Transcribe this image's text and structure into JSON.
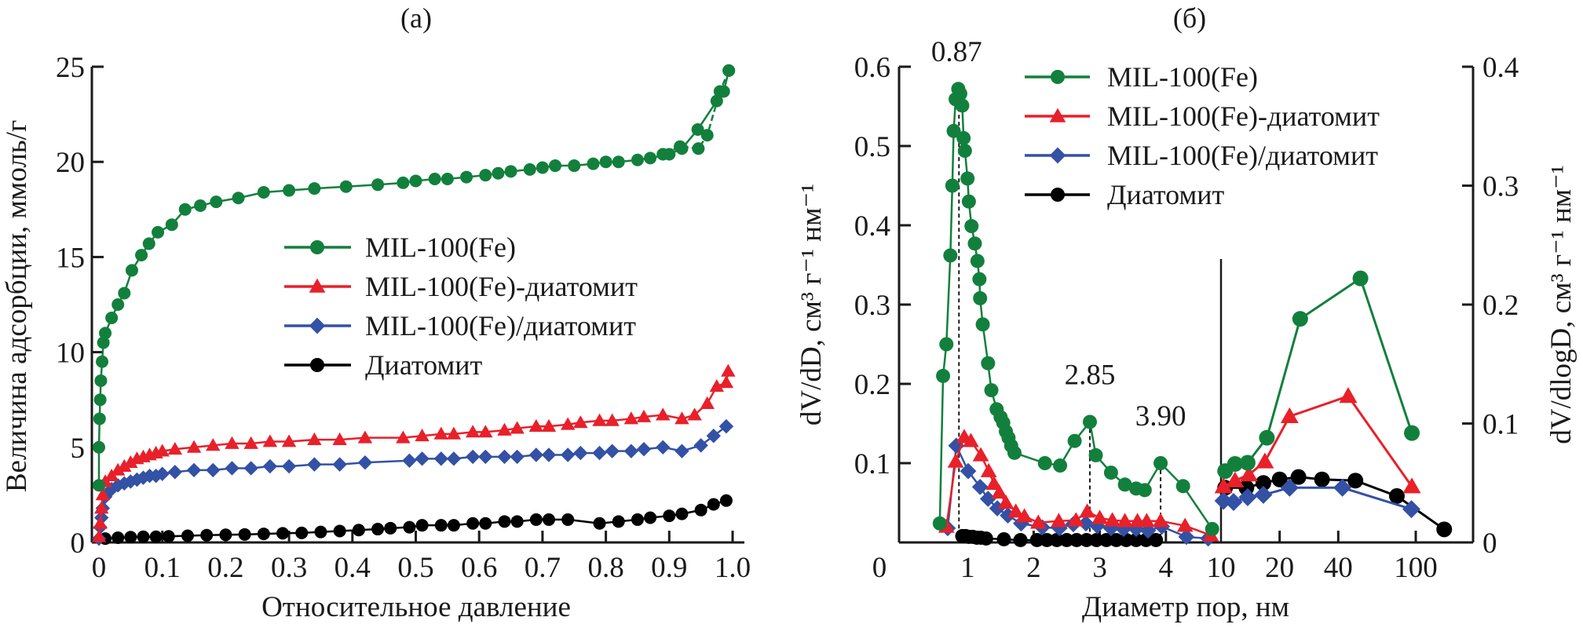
{
  "colors": {
    "green": "#12803c",
    "red": "#e8202a",
    "blue": "#3351a5",
    "black": "#000000"
  },
  "chart_data": [
    {
      "id": "a",
      "type": "line",
      "title": "(a)",
      "xlabel": "Относительное давление",
      "ylabel": "Величина адсорбции, ммоль/г",
      "xlim": [
        0,
        1.0
      ],
      "ylim": [
        0,
        25
      ],
      "xticks": [
        0,
        0.1,
        0.2,
        0.3,
        0.4,
        0.5,
        0.6,
        0.7,
        0.8,
        0.9,
        1.0
      ],
      "xtick_labels": [
        "0",
        "0.1",
        "0.2",
        "0.3",
        "0.4",
        "0.5",
        "0.6",
        "0.7",
        "0.8",
        "0.9",
        "1.0"
      ],
      "yticks": [
        0,
        5,
        10,
        15,
        20,
        25
      ],
      "ytick_labels": [
        "0",
        "5",
        "10",
        "15",
        "20",
        "25"
      ],
      "grid": false,
      "legend_position": "center-right",
      "series": [
        {
          "name": "MIL-100(Fe)",
          "color_key": "green",
          "marker": "circle",
          "x": [
            0.0,
            0.0,
            0.001,
            0.002,
            0.003,
            0.005,
            0.007,
            0.01,
            0.02,
            0.03,
            0.04,
            0.052,
            0.067,
            0.079,
            0.093,
            0.115,
            0.136,
            0.16,
            0.185,
            0.22,
            0.26,
            0.3,
            0.34,
            0.39,
            0.44,
            0.48,
            0.5,
            0.53,
            0.55,
            0.58,
            0.61,
            0.63,
            0.65,
            0.68,
            0.7,
            0.72,
            0.75,
            0.78,
            0.8,
            0.82,
            0.85,
            0.87,
            0.9,
            0.92,
            0.945,
            0.975,
            0.986,
            0.994
          ],
          "y": [
            3.0,
            5.0,
            6.5,
            7.5,
            8.5,
            9.5,
            10.5,
            11.0,
            11.8,
            12.5,
            13.1,
            14.3,
            15.1,
            15.7,
            16.3,
            16.7,
            17.5,
            17.7,
            17.9,
            18.1,
            18.4,
            18.5,
            18.6,
            18.7,
            18.8,
            18.9,
            19.0,
            19.1,
            19.1,
            19.2,
            19.3,
            19.4,
            19.5,
            19.6,
            19.7,
            19.8,
            19.8,
            19.9,
            20.0,
            20.0,
            20.1,
            20.2,
            20.4,
            20.7,
            21.7,
            23.2,
            23.7,
            24.8
          ],
          "desorption_x": [
            0.994,
            0.98,
            0.96,
            0.946,
            0.917,
            0.89
          ],
          "desorption_y": [
            24.8,
            23.7,
            21.4,
            20.7,
            20.8,
            20.4
          ]
        },
        {
          "name": "MIL-100(Fe)-диатомит",
          "color_key": "red",
          "marker": "triangle",
          "x": [
            0.0,
            0.002,
            0.004,
            0.006,
            0.01,
            0.02,
            0.03,
            0.04,
            0.05,
            0.06,
            0.07,
            0.08,
            0.09,
            0.1,
            0.12,
            0.15,
            0.18,
            0.21,
            0.24,
            0.27,
            0.3,
            0.34,
            0.38,
            0.42,
            0.48,
            0.51,
            0.54,
            0.56,
            0.59,
            0.61,
            0.64,
            0.66,
            0.69,
            0.71,
            0.74,
            0.76,
            0.79,
            0.81,
            0.84,
            0.86,
            0.89,
            0.92,
            0.94,
            0.96,
            0.975,
            0.99,
            0.993
          ],
          "y": [
            0.3,
            1.0,
            1.8,
            2.5,
            3.2,
            3.5,
            3.8,
            4.0,
            4.2,
            4.4,
            4.5,
            4.6,
            4.7,
            4.8,
            4.9,
            5.0,
            5.1,
            5.2,
            5.2,
            5.3,
            5.3,
            5.4,
            5.4,
            5.5,
            5.5,
            5.6,
            5.7,
            5.7,
            5.8,
            5.8,
            5.9,
            6.0,
            6.1,
            6.1,
            6.2,
            6.3,
            6.4,
            6.4,
            6.5,
            6.6,
            6.7,
            6.5,
            6.7,
            7.3,
            8.2,
            8.4,
            9.0
          ]
        },
        {
          "name": "MIL-100(Fe)/диатомит",
          "color_key": "blue",
          "marker": "diamond",
          "x": [
            0.0,
            0.002,
            0.004,
            0.006,
            0.01,
            0.02,
            0.03,
            0.04,
            0.05,
            0.06,
            0.07,
            0.08,
            0.09,
            0.1,
            0.12,
            0.15,
            0.18,
            0.21,
            0.24,
            0.27,
            0.3,
            0.34,
            0.38,
            0.42,
            0.49,
            0.51,
            0.54,
            0.56,
            0.59,
            0.61,
            0.64,
            0.66,
            0.69,
            0.71,
            0.74,
            0.76,
            0.79,
            0.81,
            0.84,
            0.86,
            0.89,
            0.92,
            0.95,
            0.97,
            0.99
          ],
          "y": [
            0.2,
            0.8,
            1.3,
            1.8,
            2.4,
            2.8,
            3.0,
            3.1,
            3.2,
            3.3,
            3.4,
            3.5,
            3.5,
            3.6,
            3.7,
            3.8,
            3.8,
            3.9,
            3.9,
            4.0,
            4.0,
            4.1,
            4.1,
            4.2,
            4.3,
            4.4,
            4.4,
            4.4,
            4.5,
            4.5,
            4.5,
            4.5,
            4.6,
            4.6,
            4.6,
            4.7,
            4.7,
            4.8,
            4.8,
            4.9,
            5.0,
            4.8,
            5.1,
            5.6,
            6.1
          ]
        },
        {
          "name": "Диатомит",
          "color_key": "black",
          "marker": "circle",
          "x": [
            0.01,
            0.03,
            0.05,
            0.07,
            0.09,
            0.11,
            0.14,
            0.17,
            0.2,
            0.23,
            0.26,
            0.29,
            0.32,
            0.35,
            0.38,
            0.41,
            0.44,
            0.46,
            0.49,
            0.51,
            0.54,
            0.56,
            0.59,
            0.61,
            0.64,
            0.66,
            0.69,
            0.71,
            0.74,
            0.79,
            0.82,
            0.85,
            0.87,
            0.9,
            0.92,
            0.95,
            0.97,
            0.99
          ],
          "y": [
            0.2,
            0.25,
            0.28,
            0.3,
            0.3,
            0.32,
            0.35,
            0.38,
            0.4,
            0.42,
            0.45,
            0.48,
            0.5,
            0.55,
            0.6,
            0.65,
            0.7,
            0.75,
            0.8,
            0.9,
            0.9,
            0.9,
            1.0,
            1.0,
            1.1,
            1.1,
            1.2,
            1.2,
            1.2,
            1.0,
            1.1,
            1.2,
            1.3,
            1.4,
            1.5,
            1.7,
            2.0,
            2.2
          ]
        }
      ]
    },
    {
      "id": "b",
      "type": "line",
      "title": "(б)",
      "xlabel": "Диаметр пор, нм",
      "ylabel_left": "dV/dD, см³ г⁻¹ нм⁻¹",
      "ylabel_right": "dV/dlogD, см³ г⁻¹ нм⁻¹",
      "x_segments": [
        {
          "scale": "linear",
          "xlim": [
            0,
            4.8
          ],
          "yaxis": "left"
        },
        {
          "scale": "log",
          "xlim": [
            10,
            195
          ],
          "yaxis": "right"
        }
      ],
      "xtick_labels": [
        "0",
        "1",
        "2",
        "3",
        "4",
        "10",
        "20",
        "40",
        "100"
      ],
      "xticks_linear": [
        1,
        2,
        3,
        4
      ],
      "xticks_log": [
        20,
        40,
        100
      ],
      "ylim_left": [
        0,
        0.6
      ],
      "yticks_left": [
        0.1,
        0.2,
        0.3,
        0.4,
        0.5,
        0.6
      ],
      "ytick_labels_left": [
        "0.1",
        "0.2",
        "0.3",
        "0.4",
        "0.5",
        "0.6"
      ],
      "ylim_right": [
        0,
        0.4
      ],
      "yticks_right": [
        0,
        0.1,
        0.2,
        0.3,
        0.4
      ],
      "ytick_labels_right": [
        "0",
        "0.1",
        "0.2",
        "0.3",
        "0.4"
      ],
      "grid": false,
      "legend_position": "top-center",
      "annotations": [
        {
          "text": "0.87",
          "x": 0.87,
          "y": 0.575
        },
        {
          "text": "2.85",
          "x": 2.85,
          "y": 0.152
        },
        {
          "text": "3.90",
          "x": 3.92,
          "y": 0.1
        }
      ],
      "series": [
        {
          "name": "MIL-100(Fe)",
          "color_key": "green",
          "marker": "circle",
          "linear_x": [
            0.58,
            0.63,
            0.68,
            0.74,
            0.77,
            0.79,
            0.82,
            0.86,
            0.89,
            0.92,
            0.94,
            0.96,
            1.0,
            1.02,
            1.06,
            1.11,
            1.15,
            1.18,
            1.19,
            1.23,
            1.31,
            1.36,
            1.44,
            1.5,
            1.54,
            1.58,
            1.62,
            1.66,
            1.71,
            2.17,
            2.4,
            2.62,
            2.85,
            2.94,
            3.17,
            3.38,
            3.55,
            3.68,
            3.92,
            4.26,
            4.7
          ],
          "linear_y": [
            0.024,
            0.21,
            0.25,
            0.362,
            0.45,
            0.519,
            0.559,
            0.572,
            0.566,
            0.551,
            0.51,
            0.494,
            0.459,
            0.43,
            0.399,
            0.377,
            0.355,
            0.332,
            0.308,
            0.275,
            0.226,
            0.192,
            0.168,
            0.158,
            0.151,
            0.14,
            0.132,
            0.122,
            0.113,
            0.1,
            0.097,
            0.128,
            0.152,
            0.11,
            0.088,
            0.073,
            0.068,
            0.066,
            0.1,
            0.071,
            0.017
          ],
          "log_x": [
            10.5,
            11.8,
            13.7,
            17.2,
            25.5,
            52,
            95.5
          ],
          "log_y": [
            0.06,
            0.066,
            0.067,
            0.088,
            0.188,
            0.222,
            0.092
          ]
        },
        {
          "name": "MIL-100(Fe)-диатомит",
          "color_key": "red",
          "marker": "triangle",
          "linear_x": [
            0.68,
            0.82,
            0.95,
            1.05,
            1.2,
            1.32,
            1.4,
            1.48,
            1.58,
            1.73,
            1.86,
            2.07,
            2.38,
            2.64,
            2.81,
            3.0,
            3.19,
            3.38,
            3.57,
            3.71,
            3.92,
            4.29,
            4.68
          ],
          "linear_y": [
            0.02,
            0.102,
            0.133,
            0.128,
            0.11,
            0.09,
            0.074,
            0.063,
            0.05,
            0.039,
            0.033,
            0.025,
            0.027,
            0.028,
            0.039,
            0.031,
            0.028,
            0.027,
            0.027,
            0.027,
            0.027,
            0.021,
            0.009
          ],
          "log_x": [
            10.3,
            11.8,
            13.9,
            16.8,
            22.5,
            45,
            95.5
          ],
          "log_y": [
            0.047,
            0.052,
            0.057,
            0.068,
            0.106,
            0.123,
            0.047
          ]
        },
        {
          "name": "MIL-100(Fe)/диатомит",
          "color_key": "blue",
          "marker": "diamond",
          "linear_x": [
            0.7,
            0.83,
            1.01,
            1.19,
            1.31,
            1.45,
            1.61,
            1.81,
            2.13,
            2.39,
            2.6,
            2.79,
            2.96,
            3.17,
            3.36,
            3.55,
            3.73,
            3.94,
            4.31,
            4.64
          ],
          "linear_y": [
            0.018,
            0.122,
            0.09,
            0.07,
            0.055,
            0.043,
            0.034,
            0.024,
            0.019,
            0.018,
            0.023,
            0.024,
            0.021,
            0.018,
            0.017,
            0.017,
            0.015,
            0.02,
            0.007,
            0.005
          ],
          "log_x": [
            10.3,
            11.6,
            13.7,
            16.5,
            22.5,
            42,
            95
          ],
          "log_y": [
            0.035,
            0.034,
            0.038,
            0.04,
            0.046,
            0.046,
            0.028
          ]
        },
        {
          "name": "Диатомит",
          "color_key": "black",
          "marker": "circle",
          "linear_x": [
            0.92,
            0.97,
            1.02,
            1.08,
            1.14,
            1.2,
            1.28,
            1.55,
            1.8,
            2.05,
            2.2,
            2.35,
            2.5,
            2.65,
            2.8,
            2.95,
            3.1,
            3.25,
            3.4,
            3.55,
            3.7,
            3.85
          ],
          "linear_y": [
            0.008,
            0.008,
            0.007,
            0.007,
            0.006,
            0.006,
            0.005,
            0.004,
            0.003,
            0.003,
            0.003,
            0.003,
            0.003,
            0.003,
            0.003,
            0.003,
            0.003,
            0.003,
            0.003,
            0.003,
            0.003,
            0.003
          ],
          "log_x": [
            10.5,
            13.5,
            16.5,
            20,
            25,
            33,
            49,
            80,
            140
          ],
          "log_y": [
            0.046,
            0.046,
            0.05,
            0.053,
            0.055,
            0.053,
            0.052,
            0.039,
            0.011
          ]
        }
      ]
    }
  ],
  "legend": {
    "items": [
      "MIL-100(Fe)",
      "MIL-100(Fe)-диатомит",
      "MIL-100(Fe)/диатомит",
      "Диатомит"
    ]
  }
}
